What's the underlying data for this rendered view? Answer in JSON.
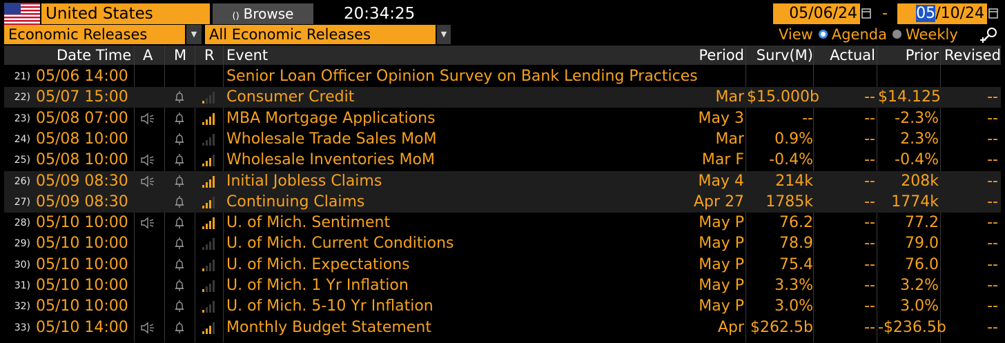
{
  "toolbar": {
    "country": "United States",
    "browse_label": "Browse",
    "clock": "20:34:25",
    "date_start": "05/06/24",
    "date_end_hl": "05",
    "date_end_rest": "/10/24",
    "date_sep": "-"
  },
  "filters": {
    "category": "Economic Releases",
    "subcategory": "All Economic Releases"
  },
  "view": {
    "label": "View",
    "options": [
      "Agenda",
      "Weekly"
    ],
    "selected": "Agenda"
  },
  "colors": {
    "accent": "#f7a21c",
    "highlight": "#1e56c8"
  },
  "table": {
    "headers": {
      "datetime": "Date Time",
      "a": "A",
      "m": "M",
      "r": "R",
      "event": "Event",
      "period": "Period",
      "surv": "Surv(M)",
      "actual": "Actual",
      "prior": "Prior",
      "revised": "Revised"
    },
    "rows": [
      {
        "idx": "21)",
        "datetime": "05/06 14:00",
        "audio": false,
        "bell": false,
        "relevance": 0,
        "event": "Senior Loan Officer Opinion Survey on Bank Lending Practices",
        "period": "",
        "surv": "",
        "actual": "",
        "prior": "",
        "revised": "",
        "alt": false
      },
      {
        "idx": "22)",
        "datetime": "05/07 15:00",
        "audio": false,
        "bell": true,
        "relevance": 1,
        "event": "Consumer Credit",
        "period": "Mar",
        "surv": "$15.000b",
        "actual": "--",
        "prior": "$14.125",
        "revised": "--",
        "alt": true
      },
      {
        "idx": "23)",
        "datetime": "05/08 07:00",
        "audio": true,
        "bell": true,
        "relevance": 4,
        "event": "MBA Mortgage Applications",
        "period": "May 3",
        "surv": "--",
        "actual": "--",
        "prior": "-2.3%",
        "revised": "--",
        "alt": false
      },
      {
        "idx": "24)",
        "datetime": "05/08 10:00",
        "audio": false,
        "bell": true,
        "relevance": 0,
        "event": "Wholesale Trade Sales MoM",
        "period": "Mar",
        "surv": "0.9%",
        "actual": "--",
        "prior": "2.3%",
        "revised": "--",
        "alt": false
      },
      {
        "idx": "25)",
        "datetime": "05/08 10:00",
        "audio": true,
        "bell": true,
        "relevance": 3,
        "event": "Wholesale Inventories MoM",
        "period": "Mar F",
        "surv": "-0.4%",
        "actual": "--",
        "prior": "-0.4%",
        "revised": "--",
        "alt": false
      },
      {
        "idx": "26)",
        "datetime": "05/09 08:30",
        "audio": true,
        "bell": true,
        "relevance": 4,
        "event": "Initial Jobless Claims",
        "period": "May 4",
        "surv": "214k",
        "actual": "--",
        "prior": "208k",
        "revised": "--",
        "alt": true
      },
      {
        "idx": "27)",
        "datetime": "05/09 08:30",
        "audio": false,
        "bell": true,
        "relevance": 3,
        "event": "Continuing Claims",
        "period": "Apr 27",
        "surv": "1785k",
        "actual": "--",
        "prior": "1774k",
        "revised": "--",
        "alt": true
      },
      {
        "idx": "28)",
        "datetime": "05/10 10:00",
        "audio": true,
        "bell": true,
        "relevance": 4,
        "event": "U. of Mich. Sentiment",
        "period": "May P",
        "surv": "76.2",
        "actual": "--",
        "prior": "77.2",
        "revised": "--",
        "alt": false
      },
      {
        "idx": "29)",
        "datetime": "05/10 10:00",
        "audio": false,
        "bell": true,
        "relevance": 0,
        "event": "U. of Mich. Current Conditions",
        "period": "May P",
        "surv": "78.9",
        "actual": "--",
        "prior": "79.0",
        "revised": "--",
        "alt": false
      },
      {
        "idx": "30)",
        "datetime": "05/10 10:00",
        "audio": false,
        "bell": true,
        "relevance": 1,
        "event": "U. of Mich. Expectations",
        "period": "May P",
        "surv": "75.4",
        "actual": "--",
        "prior": "76.0",
        "revised": "--",
        "alt": false
      },
      {
        "idx": "31)",
        "datetime": "05/10 10:00",
        "audio": false,
        "bell": true,
        "relevance": 1,
        "event": "U. of Mich. 1 Yr Inflation",
        "period": "May P",
        "surv": "3.3%",
        "actual": "--",
        "prior": "3.2%",
        "revised": "--",
        "alt": false
      },
      {
        "idx": "32)",
        "datetime": "05/10 10:00",
        "audio": false,
        "bell": true,
        "relevance": 1,
        "event": "U. of Mich. 5-10 Yr Inflation",
        "period": "May P",
        "surv": "3.0%",
        "actual": "--",
        "prior": "3.0%",
        "revised": "--",
        "alt": false
      },
      {
        "idx": "33)",
        "datetime": "05/10 14:00",
        "audio": true,
        "bell": true,
        "relevance": 3,
        "event": "Monthly Budget Statement",
        "period": "Apr",
        "surv": "$262.5b",
        "actual": "--",
        "prior": "-$236.5b",
        "revised": "--",
        "alt": false
      }
    ]
  }
}
